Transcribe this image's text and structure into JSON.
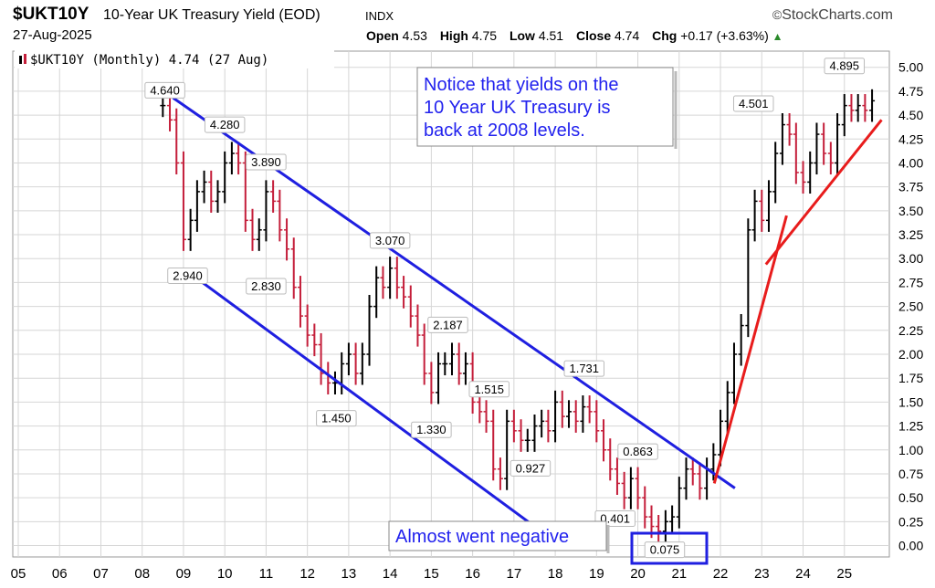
{
  "header": {
    "symbol": "$UKT10Y",
    "title": "10-Year UK Treasury Yield (EOD)",
    "exchange": "INDX",
    "brand": "StockCharts.com",
    "brand_icon": "copyright-icon",
    "date": "27-Aug-2025",
    "open_label": "Open",
    "open_value": "4.53",
    "high_label": "High",
    "high_value": "4.75",
    "low_label": "Low",
    "low_value": "4.51",
    "close_label": "Close",
    "close_value": "4.74",
    "chg_label": "Chg",
    "chg_value": "+0.17 (+3.63%)",
    "chg_icon": "triangle-up-icon"
  },
  "colors": {
    "channel": "#1f1fe0",
    "trend": "#e81c1c",
    "up_bar": "#000000",
    "down_bar": "#c41e3a",
    "grid": "#d6d6d6"
  },
  "chart_data": {
    "type": "ohlc",
    "legend": "$UKT10Y (Monthly) 4.74 (27 Aug)",
    "x_ticks": [
      "05",
      "06",
      "07",
      "08",
      "09",
      "10",
      "11",
      "12",
      "13",
      "14",
      "15",
      "16",
      "17",
      "18",
      "19",
      "20",
      "21",
      "22",
      "23",
      "24",
      "25"
    ],
    "y_ticks": [
      "0.00",
      "0.25",
      "0.50",
      "0.75",
      "1.00",
      "1.25",
      "1.50",
      "1.75",
      "2.00",
      "2.25",
      "2.50",
      "2.75",
      "3.00",
      "3.25",
      "3.50",
      "3.75",
      "4.00",
      "4.25",
      "4.50",
      "4.75",
      "5.00"
    ],
    "ylim": [
      -0.1,
      5.15
    ],
    "series_approx": [
      [
        2008.5,
        4.6
      ],
      [
        2008.67,
        4.45
      ],
      [
        2008.83,
        4.0
      ],
      [
        2009.0,
        3.2
      ],
      [
        2009.17,
        3.4
      ],
      [
        2009.33,
        3.7
      ],
      [
        2009.5,
        3.8
      ],
      [
        2009.67,
        3.6
      ],
      [
        2009.83,
        3.7
      ],
      [
        2010.0,
        4.0
      ],
      [
        2010.17,
        4.1
      ],
      [
        2010.33,
        4.0
      ],
      [
        2010.5,
        3.4
      ],
      [
        2010.67,
        3.2
      ],
      [
        2010.83,
        3.3
      ],
      [
        2011.0,
        3.7
      ],
      [
        2011.17,
        3.6
      ],
      [
        2011.33,
        3.3
      ],
      [
        2011.5,
        3.1
      ],
      [
        2011.67,
        2.7
      ],
      [
        2011.83,
        2.4
      ],
      [
        2012.0,
        2.2
      ],
      [
        2012.17,
        2.1
      ],
      [
        2012.33,
        1.8
      ],
      [
        2012.5,
        1.7
      ],
      [
        2012.67,
        1.7
      ],
      [
        2012.83,
        1.9
      ],
      [
        2013.0,
        2.0
      ],
      [
        2013.17,
        1.8
      ],
      [
        2013.33,
        2.0
      ],
      [
        2013.5,
        2.5
      ],
      [
        2013.67,
        2.8
      ],
      [
        2013.83,
        2.7
      ],
      [
        2014.0,
        2.9
      ],
      [
        2014.17,
        2.7
      ],
      [
        2014.33,
        2.6
      ],
      [
        2014.5,
        2.4
      ],
      [
        2014.67,
        2.2
      ],
      [
        2014.83,
        1.8
      ],
      [
        2015.0,
        1.6
      ],
      [
        2015.17,
        1.9
      ],
      [
        2015.33,
        1.9
      ],
      [
        2015.5,
        2.0
      ],
      [
        2015.67,
        1.8
      ],
      [
        2015.83,
        1.9
      ],
      [
        2016.0,
        1.5
      ],
      [
        2016.17,
        1.4
      ],
      [
        2016.33,
        1.3
      ],
      [
        2016.5,
        0.8
      ],
      [
        2016.67,
        0.7
      ],
      [
        2016.83,
        1.3
      ],
      [
        2017.0,
        1.2
      ],
      [
        2017.17,
        1.1
      ],
      [
        2017.33,
        1.1
      ],
      [
        2017.5,
        1.25
      ],
      [
        2017.67,
        1.3
      ],
      [
        2017.83,
        1.2
      ],
      [
        2018.0,
        1.5
      ],
      [
        2018.17,
        1.35
      ],
      [
        2018.33,
        1.4
      ],
      [
        2018.5,
        1.3
      ],
      [
        2018.67,
        1.45
      ],
      [
        2018.83,
        1.4
      ],
      [
        2019.0,
        1.2
      ],
      [
        2019.17,
        1.0
      ],
      [
        2019.33,
        0.8
      ],
      [
        2019.5,
        0.65
      ],
      [
        2019.67,
        0.5
      ],
      [
        2019.83,
        0.7
      ],
      [
        2020.0,
        0.5
      ],
      [
        2020.17,
        0.3
      ],
      [
        2020.33,
        0.2
      ],
      [
        2020.5,
        0.15
      ],
      [
        2020.67,
        0.25
      ],
      [
        2020.83,
        0.3
      ],
      [
        2021.0,
        0.6
      ],
      [
        2021.17,
        0.8
      ],
      [
        2021.33,
        0.75
      ],
      [
        2021.5,
        0.6
      ],
      [
        2021.67,
        0.8
      ],
      [
        2021.83,
        0.95
      ],
      [
        2022.0,
        1.3
      ],
      [
        2022.17,
        1.6
      ],
      [
        2022.33,
        2.0
      ],
      [
        2022.5,
        2.3
      ],
      [
        2022.67,
        3.3
      ],
      [
        2022.83,
        3.6
      ],
      [
        2023.0,
        3.4
      ],
      [
        2023.17,
        3.7
      ],
      [
        2023.33,
        4.1
      ],
      [
        2023.5,
        4.4
      ],
      [
        2023.67,
        4.3
      ],
      [
        2023.83,
        3.9
      ],
      [
        2024.0,
        3.8
      ],
      [
        2024.17,
        4.0
      ],
      [
        2024.33,
        4.3
      ],
      [
        2024.5,
        4.1
      ],
      [
        2024.67,
        4.0
      ],
      [
        2024.83,
        4.4
      ],
      [
        2025.0,
        4.6
      ],
      [
        2025.17,
        4.55
      ],
      [
        2025.33,
        4.6
      ],
      [
        2025.5,
        4.55
      ],
      [
        2025.67,
        4.65
      ]
    ],
    "point_labels": [
      {
        "text": "4.640",
        "x": 2008.55,
        "y": 4.64
      },
      {
        "text": "4.280",
        "x": 2010.0,
        "y": 4.28
      },
      {
        "text": "3.890",
        "x": 2011.0,
        "y": 3.89
      },
      {
        "text": "2.940",
        "x": 2009.1,
        "y": 2.94
      },
      {
        "text": "2.830",
        "x": 2011.0,
        "y": 2.83
      },
      {
        "text": "3.070",
        "x": 2014.0,
        "y": 3.07
      },
      {
        "text": "2.187",
        "x": 2015.4,
        "y": 2.187
      },
      {
        "text": "1.450",
        "x": 2012.7,
        "y": 1.45
      },
      {
        "text": "1.330",
        "x": 2015.0,
        "y": 1.33
      },
      {
        "text": "1.515",
        "x": 2016.4,
        "y": 1.515
      },
      {
        "text": "1.731",
        "x": 2018.7,
        "y": 1.731
      },
      {
        "text": "0.927",
        "x": 2017.4,
        "y": 0.927
      },
      {
        "text": "0.863",
        "x": 2020.0,
        "y": 0.863
      },
      {
        "text": "0.401",
        "x": 2019.45,
        "y": 0.401
      },
      {
        "text": "0.075",
        "x": 2020.65,
        "y": 0.075
      },
      {
        "text": "4.501",
        "x": 2022.8,
        "y": 4.501
      },
      {
        "text": "4.895",
        "x": 2025.0,
        "y": 4.895
      }
    ],
    "annotations": [
      {
        "text": "Notice that yields on the\n10 Year UK Treasury is\nback at 2008 levels."
      },
      {
        "text": "Almost went negative"
      }
    ],
    "channel_lines": [
      {
        "from": [
          2008.75,
          4.68
        ],
        "to": [
          2022.35,
          0.6
        ]
      },
      {
        "from": [
          2009.05,
          2.88
        ],
        "to": [
          2017.5,
          0.2
        ]
      }
    ],
    "trend_lines": [
      {
        "from": [
          2021.85,
          0.65
        ],
        "to": [
          2023.6,
          3.45
        ]
      },
      {
        "from": [
          2023.1,
          2.94
        ],
        "to": [
          2025.9,
          4.45
        ]
      }
    ]
  }
}
